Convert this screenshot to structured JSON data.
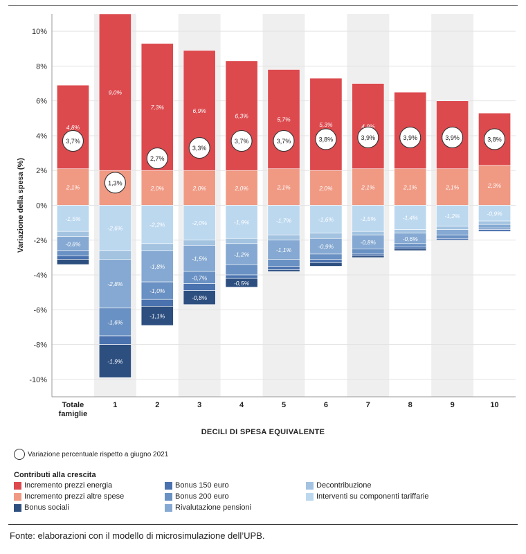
{
  "chart_data": {
    "type": "bar",
    "ylabel": "Variazione della spesa (%)",
    "xlabel": "DECILI DI SPESA EQUIVALENTE",
    "ylim": [
      -11,
      11
    ],
    "yticks": [
      -10,
      -8,
      -6,
      -4,
      -2,
      0,
      2,
      4,
      6,
      8,
      10
    ],
    "ytick_labels": [
      "-10%",
      "-8%",
      "-6%",
      "-4%",
      "-2%",
      "0%",
      "2%",
      "4%",
      "6%",
      "8%",
      "10%"
    ],
    "categories": [
      [
        "Totale",
        "famiglie"
      ],
      [
        "1"
      ],
      [
        "2"
      ],
      [
        "3"
      ],
      [
        "4"
      ],
      [
        "5"
      ],
      [
        "6"
      ],
      [
        "7"
      ],
      [
        "8"
      ],
      [
        "9"
      ],
      [
        "10"
      ]
    ],
    "stacking": "diverging",
    "series": [
      {
        "name": "Incremento prezzi altre spese",
        "color": "#f09a84",
        "values": [
          2.1,
          2.0,
          2.0,
          2.0,
          2.0,
          2.1,
          2.0,
          2.1,
          2.1,
          2.1,
          2.3
        ],
        "labels": [
          "2,1%",
          "",
          "2,0%",
          "2,0%",
          "2,0%",
          "2,1%",
          "2,0%",
          "2,1%",
          "2,1%",
          "2,1%",
          "2,3%"
        ]
      },
      {
        "name": "Incremento prezzi energia",
        "color": "#dc4a4e",
        "values": [
          4.8,
          9.0,
          7.3,
          6.9,
          6.3,
          5.7,
          5.3,
          4.9,
          4.4,
          3.9,
          3.0
        ],
        "labels": [
          "4,8%",
          "9,0%",
          "7,3%",
          "6,9%",
          "6,3%",
          "5,7%",
          "5,3%",
          "4,9%",
          "4,4%",
          "3,9%",
          "3,0%"
        ]
      },
      {
        "name": "Interventi su componenti tariffarie",
        "color": "#bcd8ef",
        "values": [
          -1.5,
          -2.6,
          -2.2,
          -2.0,
          -1.9,
          -1.7,
          -1.6,
          -1.5,
          -1.4,
          -1.2,
          -0.9
        ],
        "labels": [
          "-1,5%",
          "-2,6%",
          "-2,2%",
          "-2,0%",
          "-1,9%",
          "-1,7%",
          "-1,6%",
          "-1,5%",
          "-1,4%",
          "-1,2%",
          "-0,9%"
        ]
      },
      {
        "name": "Decontribuzione",
        "color": "#a3c3e1",
        "values": [
          -0.3,
          -0.5,
          -0.4,
          -0.3,
          -0.3,
          -0.3,
          -0.3,
          -0.2,
          -0.2,
          -0.2,
          -0.2
        ],
        "labels": [
          "",
          "",
          "",
          "",
          "",
          "",
          "",
          "",
          "",
          "",
          ""
        ]
      },
      {
        "name": "Rivalutazione pensioni",
        "color": "#85a9d2",
        "values": [
          -0.8,
          -2.8,
          -1.8,
          -1.5,
          -1.2,
          -1.1,
          -0.9,
          -0.8,
          -0.6,
          -0.3,
          -0.2
        ],
        "labels": [
          "-0,8%",
          "-2,8%",
          "-1,8%",
          "-1,5%",
          "-1,2%",
          "-1,1%",
          "-0,9%",
          "-0,8%",
          "-0,6%",
          "",
          ""
        ]
      },
      {
        "name": "Bonus 200 euro",
        "color": "#6a91c3",
        "values": [
          -0.3,
          -1.6,
          -1.0,
          -0.7,
          -0.6,
          -0.4,
          -0.3,
          -0.3,
          -0.2,
          -0.2,
          -0.1
        ],
        "labels": [
          "",
          "-1,6%",
          "-1,0%",
          "-0,7%",
          "",
          "",
          "",
          "",
          "",
          "",
          ""
        ]
      },
      {
        "name": "Bonus 150 euro",
        "color": "#4a72ae",
        "values": [
          -0.2,
          -0.5,
          -0.4,
          -0.4,
          -0.2,
          -0.2,
          -0.2,
          -0.1,
          -0.1,
          -0.1,
          -0.1
        ],
        "labels": [
          "",
          "",
          "",
          "",
          "",
          "",
          "",
          "",
          "",
          "",
          ""
        ]
      },
      {
        "name": "Bonus sociali",
        "color": "#2d4f80",
        "values": [
          -0.3,
          -1.9,
          -1.1,
          -0.8,
          -0.5,
          -0.1,
          -0.2,
          -0.1,
          -0.1,
          0.0,
          0.0
        ],
        "labels": [
          "",
          "-1,9%",
          "-1,1%",
          "-0,8%",
          "-0,5%",
          "",
          "",
          "",
          "",
          "",
          ""
        ]
      }
    ],
    "totals": {
      "name": "Variazione percentuale rispetto a giugno 2021",
      "values": [
        3.7,
        1.3,
        2.7,
        3.3,
        3.7,
        3.7,
        3.8,
        3.9,
        3.9,
        3.9,
        3.8
      ],
      "labels": [
        "3,7%",
        "1,3%",
        "2,7%",
        "3,3%",
        "3,7%",
        "3,7%",
        "3,8%",
        "3,9%",
        "3,9%",
        "3,9%",
        "3,8%"
      ]
    },
    "legend_position": "bottom",
    "alternating_shaded_columns": true
  },
  "legend": {
    "circle_label": "Variazione percentuale rispetto a giugno 2021",
    "title": "Contributi alla crescita",
    "items": [
      {
        "label": "Incremento prezzi energia",
        "color": "#dc4a4e"
      },
      {
        "label": "Incremento prezzi altre spese",
        "color": "#f09a84"
      },
      {
        "label": "Bonus sociali",
        "color": "#2d4f80"
      },
      {
        "label": "Bonus 150 euro",
        "color": "#4a72ae"
      },
      {
        "label": "Bonus 200 euro",
        "color": "#6a91c3"
      },
      {
        "label": "Rivalutazione pensioni",
        "color": "#85a9d2"
      },
      {
        "label": "Decontribuzione",
        "color": "#a3c3e1"
      },
      {
        "label": "Interventi su componenti tariffarie",
        "color": "#bcd8ef"
      }
    ]
  },
  "source": "Fonte: elaborazioni con il modello di microsimulazione dell’UPB."
}
